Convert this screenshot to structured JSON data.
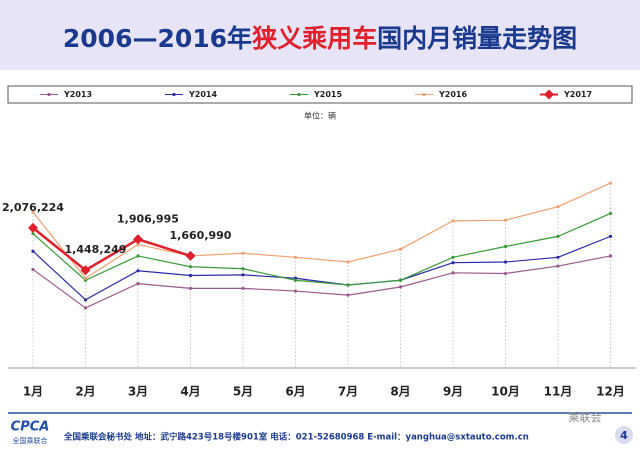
{
  "chart_data": {
    "type": "line",
    "title": [
      "2006—2016年",
      "狭义乘用车",
      "国内月销量走势图"
    ],
    "subtitle": "单位：辆",
    "categories": [
      "1月",
      "2月",
      "3月",
      "4月",
      "5月",
      "6月",
      "7月",
      "8月",
      "9月",
      "10月",
      "11月",
      "12月"
    ],
    "series": [
      {
        "name": "Y2013",
        "color": "#9a5a8c",
        "values": [
          1460000,
          890000,
          1250000,
          1180000,
          1180000,
          1140000,
          1080000,
          1200000,
          1410000,
          1400000,
          1510000,
          1660000
        ]
      },
      {
        "name": "Y2014",
        "color": "#2b2ba8",
        "values": [
          1730000,
          1010000,
          1440000,
          1370000,
          1380000,
          1330000,
          1230000,
          1300000,
          1560000,
          1570000,
          1640000,
          1950000
        ]
      },
      {
        "name": "Y2015",
        "color": "#3a9a3a",
        "values": [
          1990000,
          1300000,
          1660000,
          1500000,
          1470000,
          1300000,
          1230000,
          1300000,
          1640000,
          1800000,
          1950000,
          2290000
        ]
      },
      {
        "name": "Y2016",
        "color": "#f0a070",
        "values": [
          2310000,
          1330000,
          1830000,
          1660000,
          1700000,
          1640000,
          1570000,
          1760000,
          2180000,
          2190000,
          2390000,
          2740000
        ]
      },
      {
        "name": "Y2017",
        "color": "#e0202a",
        "values": [
          2076224,
          1448249,
          1906995,
          1660990,
          null,
          null,
          null,
          null,
          null,
          null,
          null,
          null
        ],
        "value_labels": [
          "2,076,224",
          "1,448,249",
          "1,906,995",
          "1,660,990",
          null,
          null,
          null,
          null,
          null,
          null,
          null,
          null
        ]
      }
    ],
    "ylim": [
      0,
      3200000
    ]
  },
  "footer": {
    "logo": "CPCA",
    "logo_sub": "全国乘联合",
    "text": "全国乘联会秘书处  地址：武宁路423号18号楼901室   电话：021-52680968   E-mail：yanghua@sxtauto.com.cn",
    "watermark": "乘联会",
    "page": "4"
  }
}
